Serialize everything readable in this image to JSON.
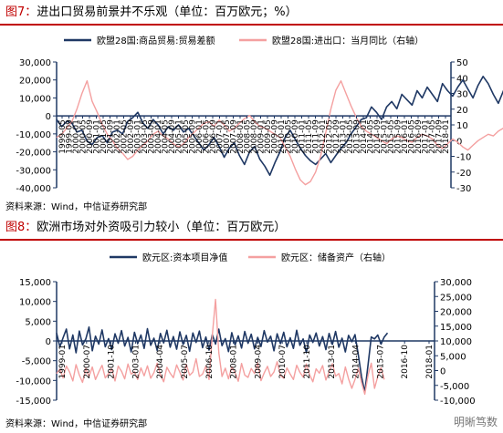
{
  "fig1": {
    "title_num": "图7：",
    "title": "进出口贸易前景并不乐观（单位：百万欧元；%）",
    "source": "资料来源：Wind，中信证券研究部",
    "chart_data": {
      "type": "line",
      "title": "进出口贸易前景并不乐观（单位：百万欧元；%）",
      "xlabel": "",
      "ylabel": "",
      "ylim_left": [
        -40000,
        30000
      ],
      "ylim_right": [
        -30,
        50
      ],
      "left_ticks": [
        30000,
        20000,
        10000,
        0,
        -10000,
        -20000,
        -30000,
        -40000
      ],
      "right_ticks": [
        50,
        40,
        30,
        20,
        10,
        0,
        -10,
        -20,
        -30
      ],
      "x_tick_labels": [
        "1999-05",
        "1999-09",
        "2000-01",
        "2000-05",
        "2000-09",
        "2001-01",
        "2001-05",
        "2001-09",
        "2002-01",
        "2002-05",
        "2002-09",
        "2003-01",
        "2003-05",
        "2003-09",
        "2004-01",
        "2004-05",
        "2004-09",
        "2005-01",
        "2005-05",
        "2005-09",
        "2006-01",
        "2006-05",
        "2006-09",
        "2007-01",
        "2007-05",
        "2007-09",
        "2008-01",
        "2008-05",
        "2008-09",
        "2009-01",
        "2009-05",
        "2009-09",
        "2010-01",
        "2010-05",
        "2010-09",
        "2011-01",
        "2011-05",
        "2011-09",
        "2012-01",
        "2012-05",
        "2012-09",
        "2013-01",
        "2013-05",
        "2013-09",
        "2014-01",
        "2014-05",
        "2014-09",
        "2015-01",
        "2015-05",
        "2015-09",
        "2016-01",
        "2016-05",
        "2016-09",
        "2017-01",
        "2017-05",
        "2017-09",
        "2018-01"
      ],
      "legend_position": "top",
      "series": [
        {
          "name": "欧盟28国:商品贸易:贸易差额",
          "axis": "left",
          "color": "#1F3864",
          "x_start": "1999-01",
          "step_months": 3,
          "values": [
            -2000,
            -6000,
            -3000,
            -4000,
            -9000,
            -8000,
            -14000,
            -16000,
            -12000,
            -11000,
            -15000,
            -9000,
            -8000,
            -10000,
            -3000,
            -1000,
            2000,
            -4000,
            -7000,
            -2000,
            -5000,
            -10000,
            -6000,
            -8000,
            -5000,
            -9000,
            -7000,
            -11000,
            -15000,
            -19000,
            -16000,
            -12000,
            -17000,
            -23000,
            -18000,
            -15000,
            -22000,
            -27000,
            -20000,
            -17000,
            -24000,
            -28000,
            -33000,
            -26000,
            -20000,
            -12000,
            -8000,
            -13000,
            -18000,
            -22000,
            -25000,
            -27000,
            -24000,
            -21000,
            -26000,
            -22000,
            -18000,
            -15000,
            -10000,
            -6000,
            -2000,
            -1000,
            5000,
            2000,
            -2000,
            5000,
            8000,
            4000,
            12000,
            9000,
            6000,
            14000,
            10000,
            16000,
            12000,
            8000,
            18000,
            14000,
            11000,
            16000,
            20000,
            15000,
            10000,
            17000,
            22000,
            18000,
            12000,
            7000,
            14000,
            20000,
            25000,
            19000,
            13000,
            17000,
            11000,
            16000,
            21000,
            8000,
            4000,
            10000,
            8000
          ]
        },
        {
          "name": "欧盟28国:进出口：当月同比（右轴）",
          "axis": "right",
          "color": "#F4A0A0",
          "x_start": "1999-01",
          "step_months": 3,
          "values": [
            2,
            4,
            8,
            12,
            20,
            30,
            38,
            25,
            18,
            10,
            4,
            0,
            -5,
            -8,
            -12,
            -10,
            -6,
            -3,
            0,
            4,
            6,
            3,
            1,
            -2,
            -4,
            -2,
            2,
            5,
            8,
            11,
            12,
            9,
            13,
            10,
            6,
            8,
            11,
            14,
            16,
            12,
            9,
            8,
            6,
            4,
            2,
            -4,
            -10,
            -18,
            -25,
            -28,
            -26,
            -20,
            -10,
            5,
            20,
            32,
            38,
            30,
            22,
            15,
            9,
            6,
            4,
            2,
            0,
            -2,
            1,
            3,
            2,
            0,
            -1,
            2,
            4,
            3,
            1,
            -3,
            -5,
            -2,
            1,
            -1,
            -4,
            -6,
            -3,
            0,
            2,
            4,
            3,
            6,
            8,
            5,
            4,
            9,
            12,
            10,
            7,
            5,
            4,
            6,
            3,
            1,
            2
          ]
        }
      ]
    }
  },
  "fig2": {
    "title_num": "图8：",
    "title": "欧洲市场对外资吸引力较小（单位：百万欧元）",
    "source": "资料来源：Wind，中信证券研究部",
    "watermark": "明晰笃数",
    "chart_data": {
      "type": "line",
      "title": "欧洲市场对外资吸引力较小（单位：百万欧元）",
      "xlabel": "",
      "ylabel": "",
      "ylim_left": [
        -15000,
        15000
      ],
      "ylim_right": [
        -10000,
        30000
      ],
      "left_ticks": [
        15000,
        10000,
        5000,
        0,
        -5000,
        -10000,
        -15000
      ],
      "right_ticks": [
        30000,
        25000,
        20000,
        15000,
        10000,
        5000,
        0,
        -5000,
        -10000
      ],
      "x_tick_labels": [
        "1999-01",
        "2000-07",
        "2001-10",
        "2003-01",
        "2004-04",
        "2005-07",
        "2006-10",
        "2008-01",
        "2009-04",
        "2010-07",
        "2011-10",
        "2013-01",
        "2014-04",
        "2015-07",
        "2016-10",
        "2018-01"
      ],
      "legend_position": "top",
      "series": [
        {
          "name": "欧元区:资本项目净值",
          "axis": "left",
          "color": "#1F3864",
          "x_start": "1999-01",
          "step_months": 2,
          "values": [
            2000,
            -1500,
            800,
            3000,
            -2000,
            1500,
            -3000,
            2500,
            -1000,
            500,
            3500,
            -2500,
            1200,
            -800,
            2800,
            -1500,
            600,
            -2200,
            1800,
            -600,
            2600,
            -1300,
            900,
            -2800,
            2200,
            -700,
            1500,
            -1900,
            3100,
            -1100,
            700,
            -2400,
            1900,
            -500,
            2700,
            -1600,
            1100,
            -2100,
            2300,
            -900,
            1400,
            -2600,
            2000,
            -400,
            2500,
            -1700,
            1000,
            -2300,
            1600,
            -800,
            3000,
            -1200,
            600,
            -2700,
            2100,
            -1000,
            1300,
            -1800,
            2400,
            -600,
            1700,
            -2000,
            900,
            -1400,
            2600,
            -300,
            1200,
            -2500,
            1800,
            -700,
            2200,
            -1500,
            800,
            -1900,
            2700,
            -1100,
            500,
            -3000,
            1500,
            -400,
            2000,
            -1300,
            1100,
            -2200,
            1900,
            -900,
            2400,
            -1600,
            700,
            -2800,
            1400,
            -200,
            1600,
            -3500,
            -9000,
            -13000,
            -6000,
            1000,
            500,
            1500,
            -800,
            1000,
            2000
          ]
        },
        {
          "name": "欧元区：储备资产（右轴）",
          "axis": "right",
          "color": "#F4A0A0",
          "x_start": "1999-01",
          "step_months": 2,
          "values": [
            -1000,
            500,
            -2500,
            1500,
            -500,
            -3500,
            2000,
            -1500,
            -4000,
            800,
            -2000,
            1200,
            -3000,
            -500,
            1800,
            -2500,
            -1000,
            600,
            -3500,
            1500,
            -200,
            -2800,
            2200,
            -1200,
            -400,
            -3000,
            900,
            -1800,
            1600,
            -2600,
            -700,
            2500,
            -1400,
            -3800,
            1100,
            -900,
            -2400,
            1900,
            -600,
            -3200,
            2100,
            -1600,
            -500,
            4000,
            -2000,
            -1200,
            1500,
            -3000,
            12000,
            24000,
            6000,
            -2000,
            800,
            -2800,
            1300,
            -700,
            -3600,
            2400,
            -1500,
            -2300,
            700,
            -1000,
            2600,
            -3400,
            -800,
            1400,
            -2000,
            -500,
            3000,
            -1700,
            -2600,
            900,
            -1200,
            -3000,
            1800,
            -600,
            -2200,
            2200,
            -1400,
            -3800,
            600,
            -900,
            1700,
            -3200,
            -400,
            2300,
            -1900,
            -1000,
            -4500,
            1200,
            -2800,
            -6000,
            -3000,
            800,
            -4000,
            -8000,
            -1500,
            2500,
            -6000,
            -2000,
            1000,
            -3000
          ]
        }
      ]
    }
  }
}
